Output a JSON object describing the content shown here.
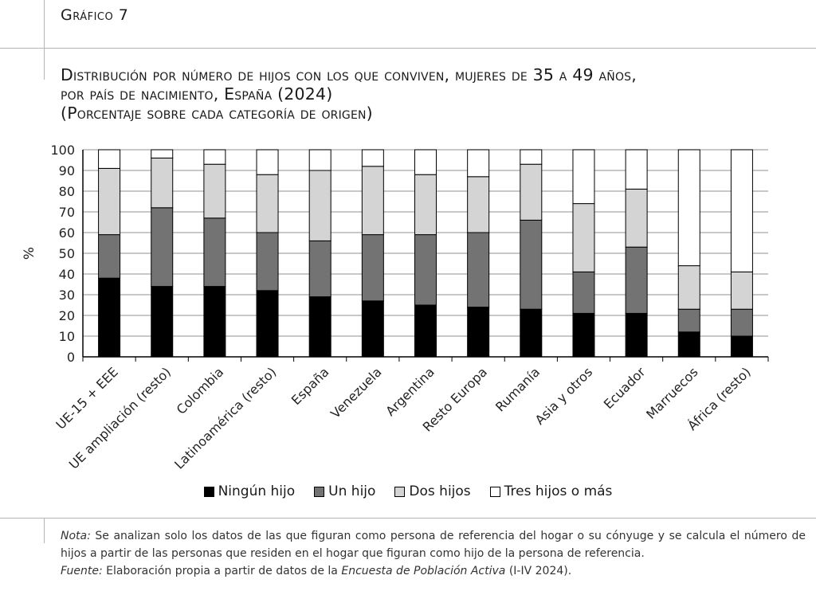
{
  "figure_label": "Gráfico 7",
  "title_lines": [
    "Distribución por número de hijos con los que conviven, mujeres de 35 a 49 años,",
    "por país de nacimiento, España (2024)",
    "(Porcentaje sobre cada categoría de origen)"
  ],
  "colors": {
    "ningun_hijo": "#000000",
    "un_hijo": "#737373",
    "dos_hijos": "#d4d4d4",
    "tres_o_mas": "#ffffff",
    "grid": "#a6a6a6"
  },
  "chart_data": {
    "type": "bar",
    "stacked": true,
    "ylabel": "%",
    "xlabel": "",
    "ylim": [
      0,
      100
    ],
    "yticks": [
      0,
      10,
      20,
      30,
      40,
      50,
      60,
      70,
      80,
      90,
      100
    ],
    "grid": true,
    "legend_position": "bottom",
    "categories": [
      "UE-15 + EEE",
      "UE ampliación (resto)",
      "Colombia",
      "Latinoamérica (resto)",
      "España",
      "Venezuela",
      "Argentina",
      "Resto Europa",
      "Rumanía",
      "Asia y otros",
      "Ecuador",
      "Marruecos",
      "África (resto)"
    ],
    "series": [
      {
        "name": "Ningún hijo",
        "values": [
          38,
          34,
          34,
          32,
          29,
          27,
          25,
          24,
          23,
          21,
          21,
          12,
          10
        ]
      },
      {
        "name": "Un hijo",
        "values": [
          21,
          38,
          33,
          28,
          27,
          32,
          34,
          36,
          43,
          20,
          32,
          11,
          13
        ]
      },
      {
        "name": "Dos hijos",
        "values": [
          32,
          24,
          26,
          28,
          34,
          33,
          29,
          27,
          27,
          33,
          28,
          21,
          18
        ]
      },
      {
        "name": "Tres hijos o más",
        "values": [
          9,
          4,
          7,
          12,
          10,
          8,
          12,
          13,
          7,
          26,
          19,
          56,
          59
        ]
      }
    ]
  },
  "note_label": "Nota:",
  "note_text": "Se analizan solo los datos de las que figuran como persona de referencia del hogar o su cónyuge y se calcula el número de hijos a partir de las personas que residen en el hogar que figuran como hijo de la persona de referencia.",
  "source_label": "Fuente:",
  "source_prefix": "Elaboración propia a partir de datos de la",
  "source_title": "Encuesta de Población Activa",
  "source_suffix": "(I-IV 2024)."
}
